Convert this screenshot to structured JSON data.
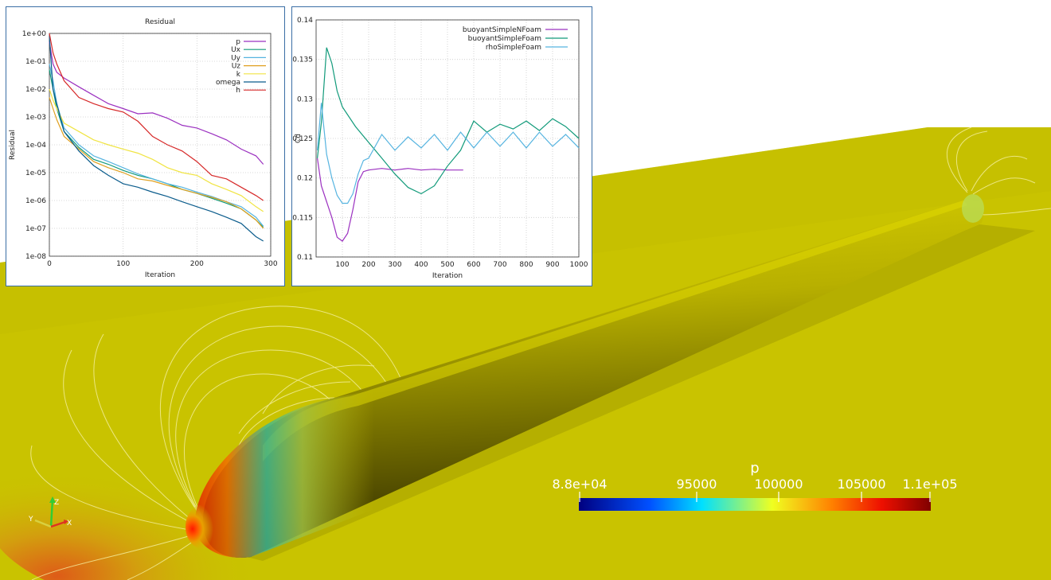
{
  "scene": {
    "colorbar": {
      "title": "p",
      "ticks": [
        "8.8e+04",
        "95000",
        "100000",
        "105000",
        "1.1e+05"
      ],
      "min": 88000,
      "max": 110000,
      "colors": [
        "#000080",
        "#0000ff",
        "#00ffff",
        "#ffff00",
        "#ff0000",
        "#800000"
      ]
    },
    "orientation_axes": {
      "z": "Z",
      "y": "Y",
      "x": "X"
    },
    "colors": {
      "ground": "#c9c300",
      "body_light": "#c8c000",
      "body_dark": "#403c00",
      "contour": "#f5f0a0"
    }
  },
  "charts": {
    "residual": {
      "title": "Residual",
      "xlabel": "Iteration",
      "ylabel": "Residual",
      "x_ticks": [
        "0",
        "100",
        "200",
        "300"
      ],
      "y_ticks": [
        "1e+00",
        "1e-01",
        "1e-02",
        "1e-03",
        "1e-04",
        "1e-05",
        "1e-06",
        "1e-07",
        "1e-08"
      ]
    },
    "cd": {
      "title": "",
      "xlabel": "Iteration",
      "ylabel": "Cd",
      "x_ticks": [
        "100",
        "200",
        "300",
        "400",
        "500",
        "600",
        "700",
        "800",
        "900",
        "1000"
      ],
      "y_ticks": [
        "0.14",
        "0.135",
        "0.13",
        "0.125",
        "0.12",
        "0.115",
        "0.11"
      ]
    }
  },
  "chart_data": [
    {
      "type": "line",
      "title": "Residual",
      "xlabel": "Iteration",
      "ylabel": "Residual",
      "ylog": true,
      "xlim": [
        0,
        300
      ],
      "ylim": [
        1e-08,
        1
      ],
      "legend": "top-right",
      "grid": true,
      "series": [
        {
          "name": "p",
          "color": "#9b30c0",
          "x": [
            0,
            5,
            10,
            20,
            40,
            60,
            80,
            100,
            120,
            140,
            160,
            180,
            200,
            220,
            240,
            260,
            280,
            290
          ],
          "y": [
            0.5,
            0.08,
            0.04,
            0.025,
            0.012,
            0.006,
            0.003,
            0.002,
            0.0013,
            0.0014,
            0.0009,
            0.0005,
            0.0004,
            0.00025,
            0.00015,
            7e-05,
            4e-05,
            2e-05
          ]
        },
        {
          "name": "Ux",
          "color": "#119a7a",
          "x": [
            0,
            5,
            10,
            20,
            40,
            60,
            80,
            100,
            120,
            140,
            160,
            180,
            200,
            220,
            240,
            260,
            280,
            290
          ],
          "y": [
            0.05,
            0.01,
            0.002,
            0.0003,
            8e-05,
            3e-05,
            2e-05,
            1.2e-05,
            8e-06,
            6e-06,
            4e-06,
            2.5e-06,
            1.8e-06,
            1.2e-06,
            8e-07,
            5e-07,
            2e-07,
            1.1e-07
          ]
        },
        {
          "name": "Uy",
          "color": "#56b4e0",
          "x": [
            0,
            5,
            10,
            20,
            40,
            60,
            80,
            100,
            120,
            140,
            160,
            180,
            200,
            220,
            240,
            260,
            280,
            290
          ],
          "y": [
            0.08,
            0.02,
            0.003,
            0.0004,
            0.0001,
            4e-05,
            2.5e-05,
            1.5e-05,
            9e-06,
            6e-06,
            4e-06,
            3e-06,
            2e-06,
            1.4e-06,
            9e-07,
            6e-07,
            2.5e-07,
            1.2e-07
          ]
        },
        {
          "name": "Uz",
          "color": "#e0a020",
          "x": [
            0,
            5,
            10,
            20,
            40,
            60,
            80,
            100,
            120,
            140,
            160,
            180,
            200,
            220,
            240,
            260,
            280,
            290
          ],
          "y": [
            0.005,
            0.002,
            0.0008,
            0.0002,
            7e-05,
            2.5e-05,
            1.5e-05,
            1e-05,
            6e-06,
            5e-06,
            3.5e-06,
            2.5e-06,
            1.8e-06,
            1.3e-06,
            9e-07,
            5e-07,
            2e-07,
            1e-07
          ]
        },
        {
          "name": "k",
          "color": "#f0e442",
          "x": [
            0,
            5,
            10,
            20,
            40,
            60,
            80,
            100,
            120,
            140,
            160,
            180,
            200,
            220,
            240,
            260,
            280,
            290
          ],
          "y": [
            0.01,
            0.004,
            0.002,
            0.0006,
            0.0003,
            0.00015,
            0.0001,
            7e-05,
            5e-05,
            3e-05,
            1.5e-05,
            1e-05,
            8e-06,
            4e-06,
            2.5e-06,
            1.5e-06,
            6e-07,
            4e-07
          ]
        },
        {
          "name": "omega",
          "color": "#0b5c8c",
          "x": [
            0,
            5,
            10,
            20,
            40,
            60,
            80,
            100,
            120,
            140,
            160,
            180,
            200,
            220,
            240,
            260,
            280,
            290
          ],
          "y": [
            0.8,
            0.01,
            0.003,
            0.0003,
            6e-05,
            1.8e-05,
            8e-06,
            4e-06,
            3e-06,
            2e-06,
            1.4e-06,
            9e-07,
            6e-07,
            4e-07,
            2.5e-07,
            1.5e-07,
            5e-08,
            3.5e-08
          ]
        },
        {
          "name": "h",
          "color": "#d62828",
          "x": [
            0,
            5,
            10,
            20,
            40,
            60,
            80,
            100,
            120,
            140,
            160,
            180,
            200,
            220,
            240,
            260,
            280,
            290
          ],
          "y": [
            1.0,
            0.2,
            0.08,
            0.02,
            0.005,
            0.003,
            0.002,
            0.0015,
            0.0007,
            0.0002,
            0.0001,
            6e-05,
            2.5e-05,
            8e-06,
            6e-06,
            3e-06,
            1.5e-06,
            1e-06
          ]
        }
      ]
    },
    {
      "type": "line",
      "xlabel": "Iteration",
      "ylabel": "Cd",
      "xlim": [
        0,
        1000
      ],
      "ylim": [
        0.11,
        0.14
      ],
      "legend": "top-right",
      "grid": true,
      "series": [
        {
          "name": "buoyantSimpleNFoam",
          "color": "#9b30c0",
          "x": [
            5,
            20,
            40,
            60,
            80,
            100,
            120,
            140,
            160,
            180,
            200,
            250,
            300,
            350,
            400,
            450,
            500,
            560
          ],
          "y": [
            0.1225,
            0.119,
            0.117,
            0.115,
            0.1125,
            0.112,
            0.113,
            0.116,
            0.1195,
            0.1208,
            0.121,
            0.1212,
            0.121,
            0.1212,
            0.121,
            0.1211,
            0.121,
            0.121
          ]
        },
        {
          "name": "buoyantSimpleFoam",
          "color": "#119a7a",
          "x": [
            5,
            20,
            40,
            60,
            80,
            100,
            150,
            200,
            250,
            300,
            350,
            400,
            450,
            500,
            550,
            600,
            650,
            700,
            750,
            800,
            850,
            900,
            950,
            1000
          ],
          "y": [
            0.1225,
            0.127,
            0.1365,
            0.1345,
            0.131,
            0.129,
            0.1265,
            0.1245,
            0.1225,
            0.1205,
            0.1188,
            0.118,
            0.119,
            0.1215,
            0.1235,
            0.1272,
            0.1258,
            0.1268,
            0.1262,
            0.1272,
            0.126,
            0.1275,
            0.1265,
            0.125
          ]
        },
        {
          "name": "rhoSimpleFoam",
          "color": "#56b4e0",
          "x": [
            5,
            20,
            40,
            60,
            80,
            100,
            120,
            140,
            160,
            180,
            200,
            250,
            300,
            350,
            400,
            450,
            500,
            550,
            600,
            650,
            700,
            750,
            800,
            850,
            900,
            950,
            1000
          ],
          "y": [
            0.1235,
            0.1295,
            0.123,
            0.12,
            0.1178,
            0.1168,
            0.1168,
            0.118,
            0.1205,
            0.1222,
            0.1225,
            0.1255,
            0.1235,
            0.1252,
            0.1238,
            0.1255,
            0.1235,
            0.1258,
            0.1238,
            0.1258,
            0.124,
            0.1258,
            0.1238,
            0.1258,
            0.124,
            0.1255,
            0.1238
          ]
        }
      ]
    }
  ]
}
